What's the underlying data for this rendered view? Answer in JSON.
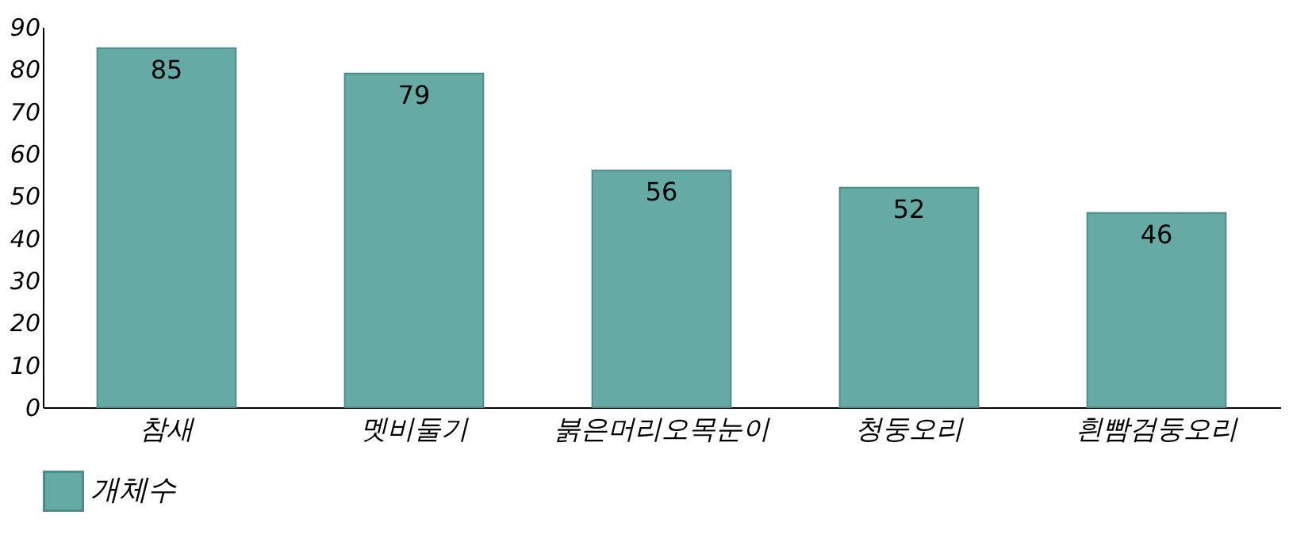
{
  "chart_data": {
    "type": "bar",
    "categories": [
      "참새",
      "멧비둘기",
      "붉은머리오목눈이",
      "청둥오리",
      "흰빰검둥오리"
    ],
    "series": [
      {
        "name": "개체수",
        "color": "#66aaa6",
        "values": [
          85,
          79,
          56,
          52,
          46
        ]
      }
    ],
    "ylim": [
      0,
      90
    ],
    "yticks": [
      0,
      10,
      20,
      30,
      40,
      50,
      60,
      70,
      80,
      90
    ],
    "data_labels": true,
    "legend": "bottom",
    "grid": false
  }
}
